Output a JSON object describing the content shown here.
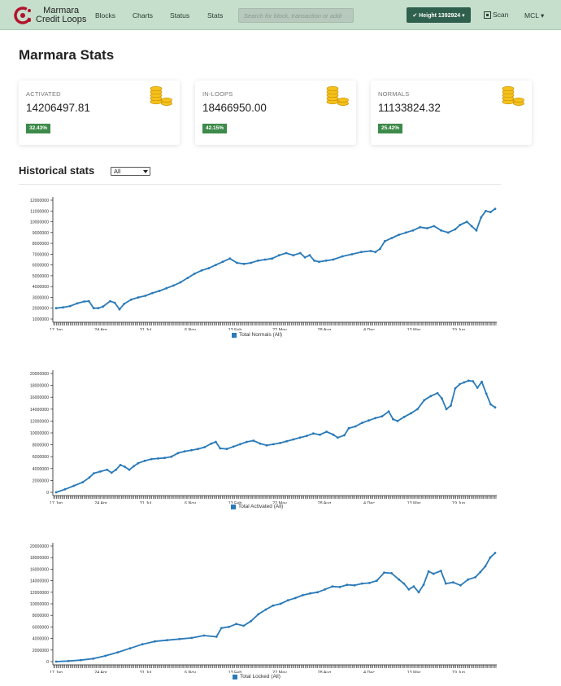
{
  "nav": {
    "brand_line1": "Marmara",
    "brand_line2": "Credit Loops",
    "links": [
      "Blocks",
      "Charts",
      "Status",
      "Stats"
    ],
    "search_placeholder": "Search for block, transaction or addr",
    "height_label": "✔ Height 1392924 ▾",
    "scan_label": "Scan",
    "currency_label": "MCL ▾"
  },
  "page_title": "Marmara Stats",
  "cards": [
    {
      "label": "ACTIVATED",
      "value": "14206497.81",
      "percent": "32.43%"
    },
    {
      "label": "IN-LOOPS",
      "value": "18466950.00",
      "percent": "42.15%"
    },
    {
      "label": "NORMALS",
      "value": "11133824.32",
      "percent": "25.42%"
    }
  ],
  "historical": {
    "title": "Historical stats",
    "range_selected": "All"
  },
  "colors": {
    "navbar": "#c5dfcc",
    "series": "#2a7ab8",
    "badge": "#3d8a4a",
    "height_button": "#2f5f4d"
  },
  "chart_data": [
    {
      "type": "line",
      "title": "",
      "series": [
        {
          "name": "Total Normals (All)",
          "values": [
            [
              0,
              2000000
            ],
            [
              3,
              2080000
            ],
            [
              6,
              2200000
            ],
            [
              9,
              2450000
            ],
            [
              12,
              2620000
            ],
            [
              14,
              2650000
            ],
            [
              16,
              2000000
            ],
            [
              18,
              2000000
            ],
            [
              20,
              2150000
            ],
            [
              23,
              2650000
            ],
            [
              25,
              2500000
            ],
            [
              27,
              1900000
            ],
            [
              29,
              2400000
            ],
            [
              32,
              2800000
            ],
            [
              35,
              3000000
            ],
            [
              38,
              3150000
            ],
            [
              41,
              3400000
            ],
            [
              44,
              3600000
            ],
            [
              47,
              3850000
            ],
            [
              50,
              4100000
            ],
            [
              53,
              4400000
            ],
            [
              56,
              4800000
            ],
            [
              59,
              5200000
            ],
            [
              62,
              5500000
            ],
            [
              65,
              5700000
            ],
            [
              68,
              6000000
            ],
            [
              71,
              6300000
            ],
            [
              74,
              6600000
            ],
            [
              77,
              6200000
            ],
            [
              80,
              6100000
            ],
            [
              83,
              6200000
            ],
            [
              86,
              6400000
            ],
            [
              89,
              6500000
            ],
            [
              92,
              6600000
            ],
            [
              95,
              6900000
            ],
            [
              98,
              7100000
            ],
            [
              101,
              6900000
            ],
            [
              104,
              7100000
            ],
            [
              106,
              6700000
            ],
            [
              108,
              6900000
            ],
            [
              110,
              6400000
            ],
            [
              112,
              6300000
            ],
            [
              115,
              6400000
            ],
            [
              118,
              6500000
            ],
            [
              122,
              6800000
            ],
            [
              126,
              7000000
            ],
            [
              130,
              7200000
            ],
            [
              134,
              7300000
            ],
            [
              136,
              7200000
            ],
            [
              138,
              7500000
            ],
            [
              140,
              8200000
            ],
            [
              143,
              8500000
            ],
            [
              146,
              8800000
            ],
            [
              149,
              9000000
            ],
            [
              152,
              9200000
            ],
            [
              155,
              9500000
            ],
            [
              158,
              9400000
            ],
            [
              161,
              9600000
            ],
            [
              164,
              9200000
            ],
            [
              167,
              9000000
            ],
            [
              170,
              9300000
            ],
            [
              172,
              9700000
            ],
            [
              175,
              10000000
            ],
            [
              177,
              9600000
            ],
            [
              179,
              9200000
            ],
            [
              181,
              10400000
            ],
            [
              183,
              11000000
            ],
            [
              185,
              10900000
            ],
            [
              187,
              11200000
            ]
          ]
        }
      ],
      "x_ticks": [
        "17 Jan",
        "24 Apr",
        "31 Jul",
        "6 Nov",
        "13 Feb",
        "22 May",
        "28 Aug",
        "4 Dec",
        "13 Mar",
        "19 Jun"
      ],
      "y_ticks": [
        "12000000",
        "11000000",
        "10000000",
        "9000000",
        "8000000",
        "7000000",
        "6000000",
        "5000000",
        "4000000",
        "3000000",
        "2000000",
        "1000000"
      ],
      "ylim": [
        1000000,
        12000000
      ],
      "xlim": [
        0,
        187
      ],
      "grid": false,
      "legend_position": "bottom"
    },
    {
      "type": "line",
      "title": "",
      "series": [
        {
          "name": "Total Activated (All)",
          "values": [
            [
              0,
              0
            ],
            [
              4,
              500000
            ],
            [
              8,
              1100000
            ],
            [
              12,
              1700000
            ],
            [
              15,
              2500000
            ],
            [
              17,
              3200000
            ],
            [
              20,
              3500000
            ],
            [
              23,
              3800000
            ],
            [
              25,
              3300000
            ],
            [
              27,
              3800000
            ],
            [
              29,
              4600000
            ],
            [
              31,
              4300000
            ],
            [
              33,
              3800000
            ],
            [
              35,
              4400000
            ],
            [
              37,
              4900000
            ],
            [
              40,
              5300000
            ],
            [
              43,
              5600000
            ],
            [
              46,
              5700000
            ],
            [
              49,
              5800000
            ],
            [
              52,
              6000000
            ],
            [
              55,
              6600000
            ],
            [
              58,
              6900000
            ],
            [
              61,
              7100000
            ],
            [
              64,
              7300000
            ],
            [
              67,
              7600000
            ],
            [
              70,
              8200000
            ],
            [
              72,
              8500000
            ],
            [
              74,
              7400000
            ],
            [
              77,
              7300000
            ],
            [
              80,
              7700000
            ],
            [
              83,
              8100000
            ],
            [
              86,
              8500000
            ],
            [
              89,
              8700000
            ],
            [
              92,
              8200000
            ],
            [
              95,
              7900000
            ],
            [
              98,
              8100000
            ],
            [
              101,
              8300000
            ],
            [
              104,
              8600000
            ],
            [
              107,
              8900000
            ],
            [
              110,
              9200000
            ],
            [
              113,
              9500000
            ],
            [
              116,
              9900000
            ],
            [
              119,
              9700000
            ],
            [
              122,
              10200000
            ],
            [
              125,
              9700000
            ],
            [
              127,
              9200000
            ],
            [
              130,
              9600000
            ],
            [
              132,
              10800000
            ],
            [
              135,
              11100000
            ],
            [
              138,
              11700000
            ],
            [
              141,
              12100000
            ],
            [
              144,
              12500000
            ],
            [
              147,
              12800000
            ],
            [
              150,
              13600000
            ],
            [
              152,
              12300000
            ],
            [
              154,
              12000000
            ],
            [
              157,
              12700000
            ],
            [
              160,
              13300000
            ],
            [
              163,
              14000000
            ],
            [
              166,
              15500000
            ],
            [
              169,
              16200000
            ],
            [
              172,
              16700000
            ],
            [
              174,
              15800000
            ],
            [
              176,
              14000000
            ],
            [
              178,
              14600000
            ],
            [
              180,
              17500000
            ],
            [
              182,
              18200000
            ],
            [
              184,
              18500000
            ],
            [
              186,
              18800000
            ],
            [
              188,
              18700000
            ],
            [
              190,
              17600000
            ],
            [
              192,
              18600000
            ],
            [
              194,
              16600000
            ],
            [
              196,
              14800000
            ],
            [
              198,
              14300000
            ]
          ]
        }
      ],
      "x_ticks": [
        "17 Jan",
        "24 Apr",
        "31 Jul",
        "6 Nov",
        "13 Feb",
        "22 May",
        "28 Aug",
        "4 Dec",
        "13 Mar",
        "19 Jun"
      ],
      "y_ticks": [
        "20000000",
        "18000000",
        "16000000",
        "14000000",
        "12000000",
        "10000000",
        "8000000",
        "6000000",
        "4000000",
        "2000000",
        "0"
      ],
      "ylim": [
        0,
        20000000
      ],
      "xlim": [
        0,
        198
      ],
      "grid": false,
      "legend_position": "bottom"
    },
    {
      "type": "line",
      "title": "",
      "series": [
        {
          "name": "Total Locked (All)",
          "values": [
            [
              0,
              0
            ],
            [
              5,
              100000
            ],
            [
              10,
              250000
            ],
            [
              15,
              500000
            ],
            [
              20,
              1000000
            ],
            [
              25,
              1600000
            ],
            [
              30,
              2300000
            ],
            [
              35,
              3000000
            ],
            [
              40,
              3500000
            ],
            [
              45,
              3700000
            ],
            [
              50,
              3900000
            ],
            [
              55,
              4100000
            ],
            [
              60,
              4500000
            ],
            [
              65,
              4300000
            ],
            [
              67,
              5800000
            ],
            [
              70,
              6000000
            ],
            [
              73,
              6500000
            ],
            [
              76,
              6200000
            ],
            [
              79,
              7000000
            ],
            [
              82,
              8200000
            ],
            [
              85,
              9000000
            ],
            [
              88,
              9700000
            ],
            [
              91,
              10000000
            ],
            [
              94,
              10600000
            ],
            [
              97,
              11000000
            ],
            [
              100,
              11500000
            ],
            [
              103,
              11800000
            ],
            [
              106,
              12000000
            ],
            [
              109,
              12500000
            ],
            [
              112,
              13000000
            ],
            [
              115,
              12900000
            ],
            [
              118,
              13300000
            ],
            [
              121,
              13200000
            ],
            [
              124,
              13500000
            ],
            [
              127,
              13600000
            ],
            [
              130,
              14000000
            ],
            [
              133,
              15400000
            ],
            [
              136,
              15300000
            ],
            [
              139,
              14200000
            ],
            [
              141,
              13500000
            ],
            [
              143,
              12500000
            ],
            [
              145,
              13000000
            ],
            [
              147,
              12000000
            ],
            [
              149,
              13300000
            ],
            [
              151,
              15600000
            ],
            [
              153,
              15200000
            ],
            [
              156,
              15700000
            ],
            [
              158,
              13500000
            ],
            [
              161,
              13700000
            ],
            [
              164,
              13200000
            ],
            [
              167,
              14200000
            ],
            [
              170,
              14600000
            ],
            [
              172,
              15500000
            ],
            [
              174,
              16500000
            ],
            [
              176,
              18000000
            ],
            [
              178,
              18800000
            ]
          ]
        }
      ],
      "x_ticks": [
        "17 Jan",
        "24 Apr",
        "31 Jul",
        "6 Nov",
        "13 Feb",
        "22 May",
        "28 Aug",
        "4 Dec",
        "13 Mar",
        "19 Jun"
      ],
      "y_ticks": [
        "20000000",
        "18000000",
        "16000000",
        "14000000",
        "12000000",
        "10000000",
        "8000000",
        "6000000",
        "4000000",
        "2000000",
        "0"
      ],
      "ylim": [
        0,
        20000000
      ],
      "xlim": [
        0,
        178
      ],
      "grid": false,
      "legend_position": "bottom"
    }
  ]
}
